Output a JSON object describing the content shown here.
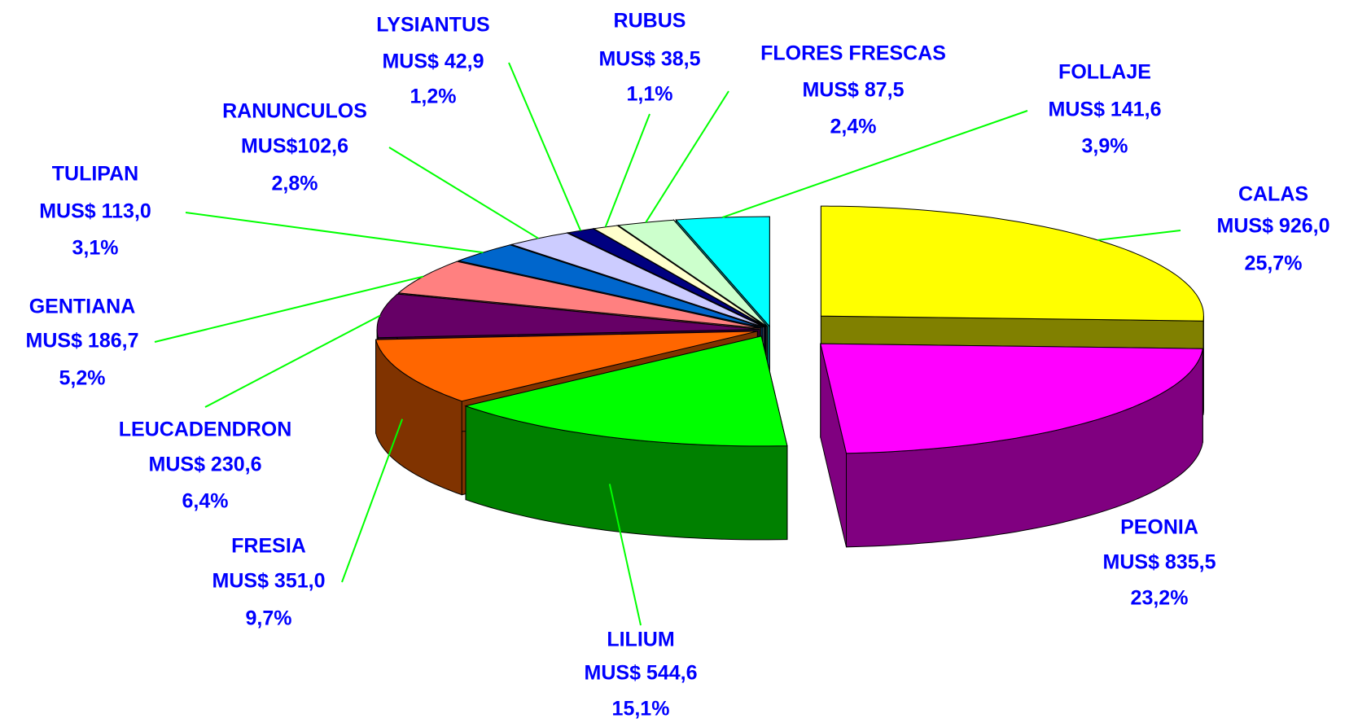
{
  "chart_data": {
    "type": "pie",
    "categories": [
      "CALAS",
      "PEONIA",
      "LILIUM",
      "FRESIA",
      "LEUCADENDRON",
      "GENTIANA",
      "TULIPAN",
      "RANUNCULOS",
      "LYSIANTUS",
      "RUBUS",
      "FLORES FRESCAS",
      "FOLLAJE"
    ],
    "values": [
      926.0,
      835.5,
      544.6,
      351.0,
      230.6,
      186.7,
      113.0,
      102.6,
      42.9,
      38.5,
      87.5,
      141.6
    ],
    "value_labels": [
      "MUS$ 926,0",
      "MUS$ 835,5",
      "MUS$ 544,6",
      "MUS$ 351,0",
      "MUS$ 230,6",
      "MUS$ 186,7",
      "MUS$ 113,0",
      "MUS$102,6",
      "MUS$ 42,9",
      "MUS$ 38,5",
      "MUS$ 87,5",
      "MUS$ 141,6"
    ],
    "percents": [
      25.7,
      23.2,
      15.1,
      9.7,
      6.4,
      5.2,
      3.1,
      2.8,
      1.2,
      1.1,
      2.4,
      3.9
    ],
    "percent_labels": [
      "25,7%",
      "23,2%",
      "15,1%",
      "9,7%",
      "6,4%",
      "5,2%",
      "3,1%",
      "2,8%",
      "1,2%",
      "1,1%",
      "2,4%",
      "3,9%"
    ],
    "colors": [
      "#ffff00",
      "#ff00ff",
      "#00ff00",
      "#ff6600",
      "#660066",
      "#ff8080",
      "#0066cc",
      "#ccccff",
      "#000080",
      "#ffffcc",
      "#ccffcc",
      "#00ffff"
    ]
  }
}
